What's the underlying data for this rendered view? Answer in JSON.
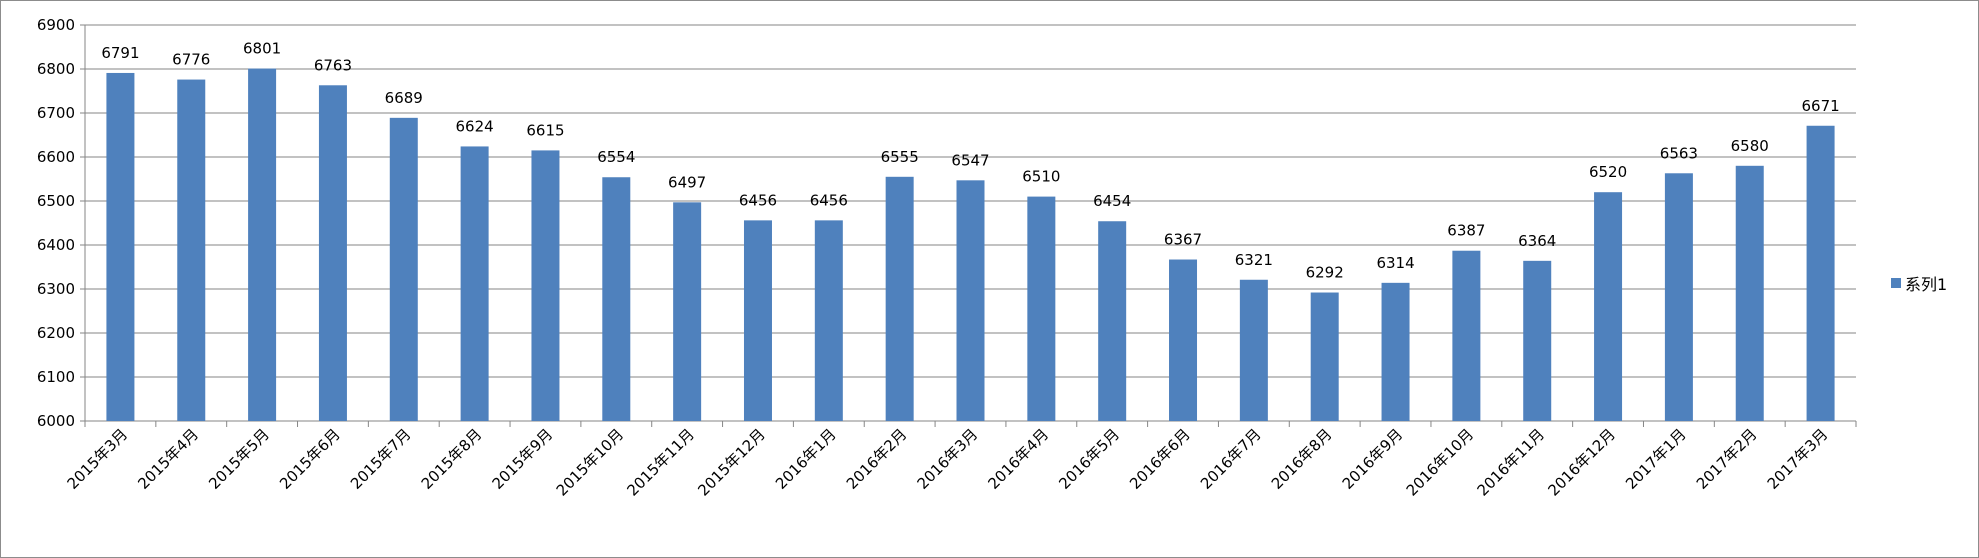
{
  "chart_data": {
    "type": "bar",
    "title": "",
    "xlabel": "",
    "ylabel": "",
    "ylim": [
      6000,
      6900
    ],
    "yticks": [
      6000,
      6100,
      6200,
      6300,
      6400,
      6500,
      6600,
      6700,
      6800,
      6900
    ],
    "grid": true,
    "legend_position": "right",
    "categories": [
      "2015年3月",
      "2015年4月",
      "2015年5月",
      "2015年6月",
      "2015年7月",
      "2015年8月",
      "2015年9月",
      "2015年10月",
      "2015年11月",
      "2015年12月",
      "2016年1月",
      "2016年2月",
      "2016年3月",
      "2016年4月",
      "2016年5月",
      "2016年6月",
      "2016年7月",
      "2016年8月",
      "2016年9月",
      "2016年10月",
      "2016年11月",
      "2016年12月",
      "2017年1月",
      "2017年2月",
      "2017年3月"
    ],
    "series": [
      {
        "name": "系列1",
        "color": "#4f81bd",
        "values": [
          6791,
          6776,
          6801,
          6763,
          6689,
          6624,
          6615,
          6554,
          6497,
          6456,
          6456,
          6555,
          6547,
          6510,
          6454,
          6367,
          6321,
          6292,
          6314,
          6387,
          6364,
          6520,
          6563,
          6580,
          6671
        ]
      }
    ]
  }
}
